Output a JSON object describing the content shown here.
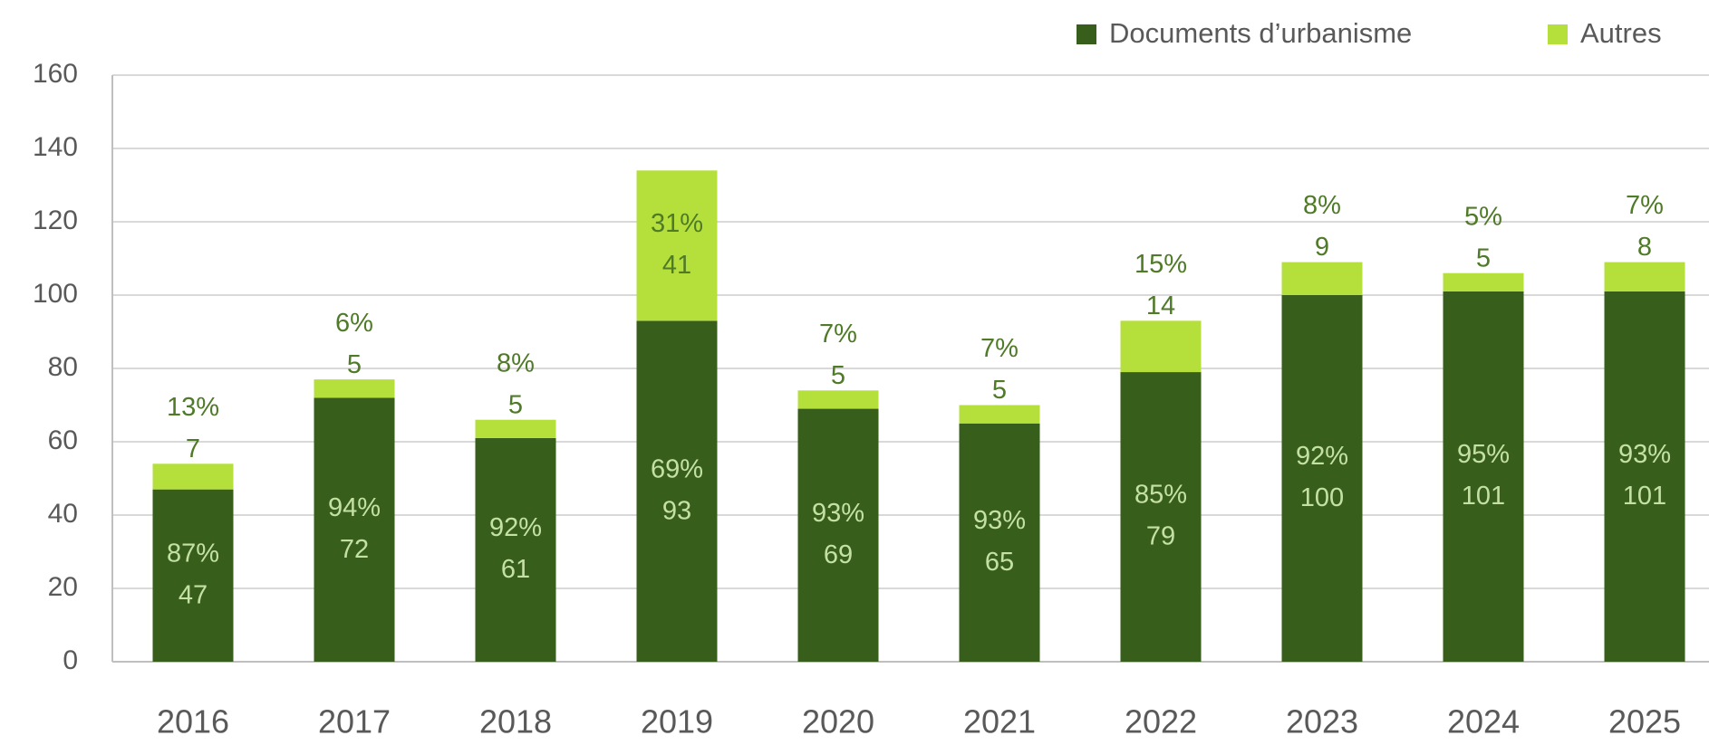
{
  "chart_data": {
    "type": "stacked_bar",
    "categories": [
      "2016",
      "2017",
      "2018",
      "2019",
      "2020",
      "2021",
      "2022",
      "2023",
      "2024",
      "2025"
    ],
    "series": [
      {
        "name": "Documents d’urbanisme",
        "color": "#375f1b",
        "values": [
          47,
          72,
          61,
          93,
          69,
          65,
          79,
          100,
          101,
          101
        ],
        "share_labels": [
          "87%",
          "94%",
          "92%",
          "69%",
          "93%",
          "93%",
          "85%",
          "92%",
          "95%",
          "93%"
        ]
      },
      {
        "name": "Autres",
        "color": "#b5e03c",
        "values": [
          7,
          5,
          5,
          41,
          5,
          5,
          14,
          9,
          5,
          8
        ],
        "share_labels": [
          "13%",
          "6%",
          "8%",
          "31%",
          "7%",
          "7%",
          "15%",
          "8%",
          "5%",
          "7%"
        ]
      }
    ],
    "ylim": [
      0,
      160
    ],
    "yticks": [
      0,
      20,
      40,
      60,
      80,
      100,
      120,
      140,
      160
    ],
    "grid": true,
    "legend": "top-right"
  }
}
